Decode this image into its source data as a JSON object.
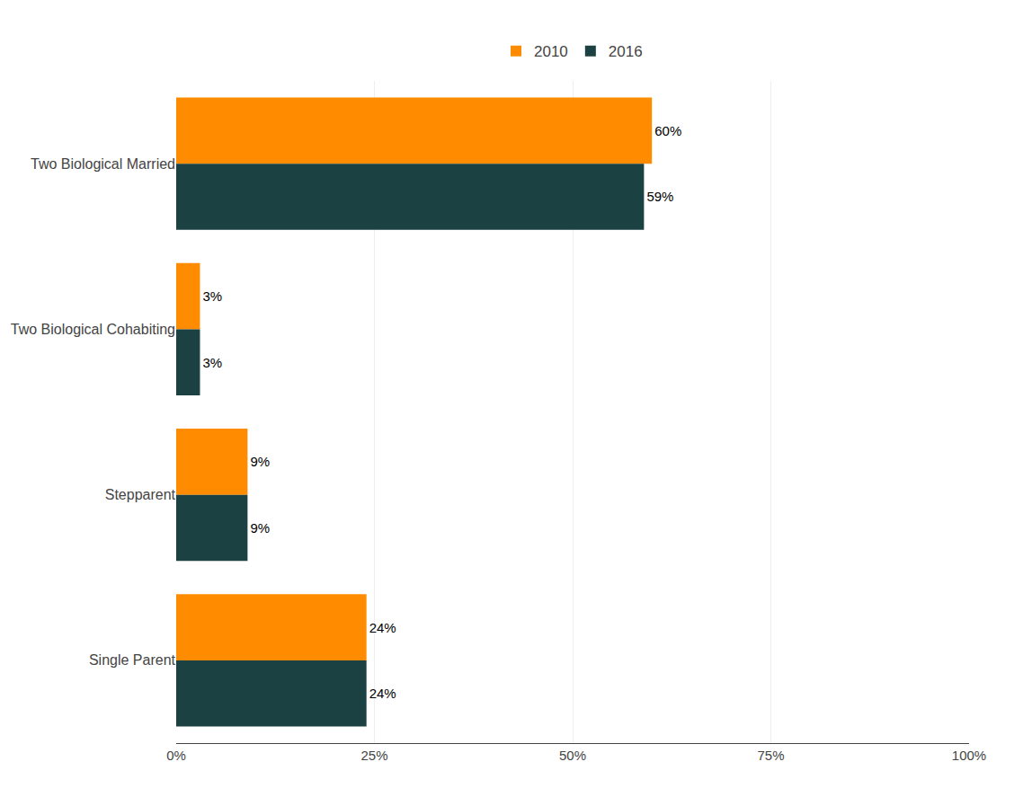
{
  "chart_data": {
    "type": "bar",
    "orientation": "horizontal",
    "categories": [
      "Two Biological Married",
      "Two Biological Cohabiting",
      "Stepparent",
      "Single Parent"
    ],
    "series": [
      {
        "name": "2010",
        "color": "#FF8C00",
        "values": [
          60,
          3,
          9,
          24
        ],
        "value_labels": [
          "60%",
          "3%",
          "9%",
          "24%"
        ]
      },
      {
        "name": "2016",
        "color": "#1C4142",
        "values": [
          59,
          3,
          9,
          24
        ],
        "value_labels": [
          "59%",
          "3%",
          "9%",
          "24%"
        ]
      }
    ],
    "xlim": [
      0,
      100
    ],
    "xticks": [
      {
        "value": 0,
        "label": "0%"
      },
      {
        "value": 25,
        "label": "25%"
      },
      {
        "value": 50,
        "label": "50%"
      },
      {
        "value": 75,
        "label": "75%"
      },
      {
        "value": 100,
        "label": "100%"
      }
    ],
    "grid": true,
    "legend": "top",
    "data_labels": true
  }
}
